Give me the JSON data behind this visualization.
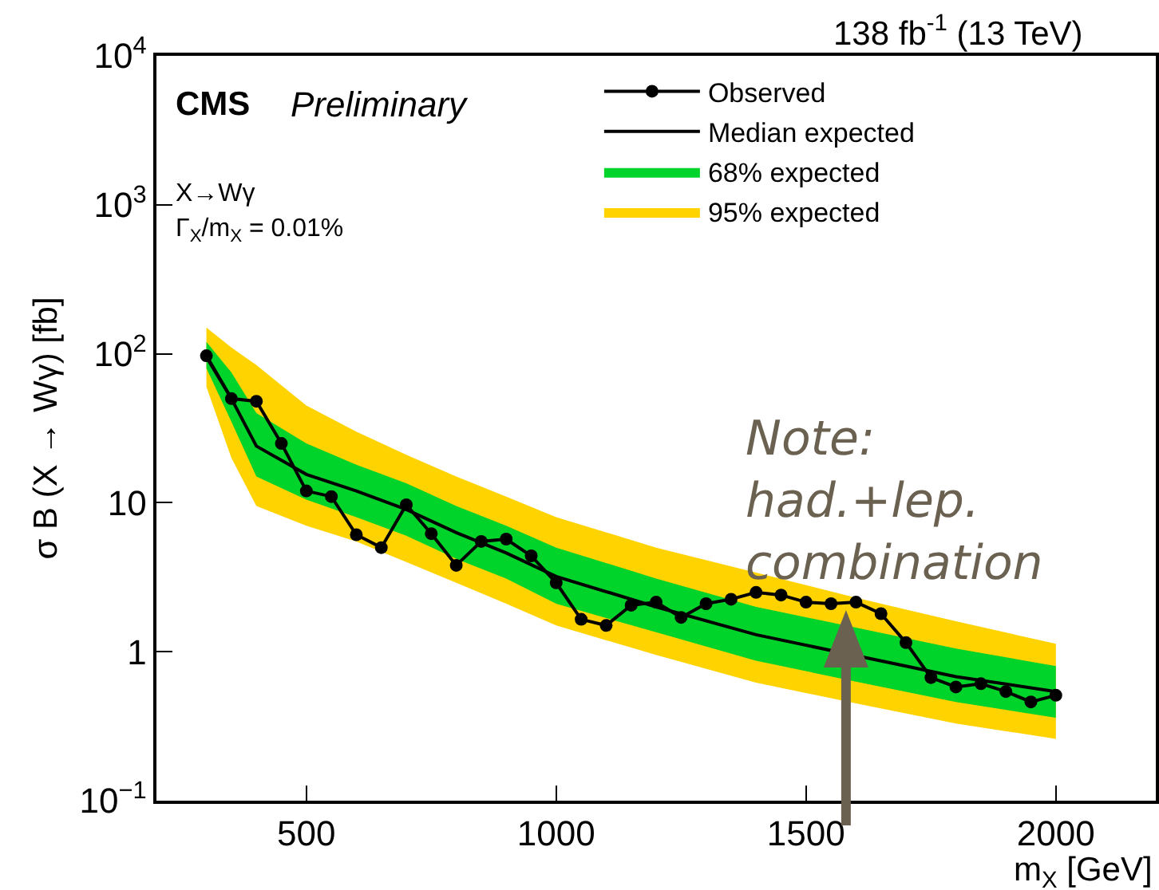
{
  "chart_data": {
    "type": "line",
    "xlabel": "m$_{X}$ [GeV]",
    "ylabel": "σ B (X → Wγ) [fb]",
    "log": "y",
    "xlim": [
      200,
      2200
    ],
    "xticks": [
      500,
      1000,
      1500,
      2000
    ],
    "ylim": [
      0.1,
      10000
    ],
    "yticks": [
      {
        "value": 0.1,
        "label": "10$^{−1}$"
      },
      1,
      10,
      {
        "value": 100,
        "label": "10$^{2}$"
      },
      {
        "value": 1000,
        "label": "10$^{3}$"
      },
      {
        "value": 10000,
        "label": "10$^{4}$"
      }
    ],
    "grid": false,
    "legend": "top right",
    "marker": "circle",
    "line_style": "solid",
    "series": [
      {
        "name": "95% expected",
        "type": "area",
        "marker": "none",
        "color": "#fed300",
        "x": [
          300,
          350,
          400,
          500,
          600,
          700,
          800,
          900,
          1000,
          1200,
          1400,
          1600,
          1800,
          2000
        ],
        "values": [
          null,
          null,
          null,
          null,
          null,
          null,
          null,
          null,
          null,
          null,
          null,
          null,
          null,
          null
        ],
        "lower": [
          60,
          20,
          9.5,
          7,
          5.5,
          4,
          2.9,
          2.1,
          1.5,
          0.95,
          0.62,
          0.45,
          0.33,
          0.26
        ],
        "upper": [
          150,
          110,
          84,
          45,
          30,
          21,
          15,
          11,
          8,
          5,
          3.4,
          2.3,
          1.6,
          1.13
        ]
      },
      {
        "name": "68% expected",
        "type": "area",
        "marker": "none",
        "color": "#00d32a",
        "x": [
          300,
          350,
          400,
          500,
          600,
          700,
          800,
          900,
          1000,
          1200,
          1400,
          1600,
          1800,
          2000
        ],
        "values": [
          null,
          null,
          null,
          null,
          null,
          null,
          null,
          null,
          null,
          null,
          null,
          null,
          null,
          null
        ],
        "lower": [
          80,
          35,
          15,
          10.5,
          8,
          6,
          4.2,
          3.1,
          2.1,
          1.35,
          0.87,
          0.63,
          0.46,
          0.36
        ],
        "upper": [
          120,
          75,
          40,
          25,
          18,
          13.5,
          9.5,
          7,
          5,
          3.1,
          2.0,
          1.45,
          1.05,
          0.8
        ]
      },
      {
        "name": "Median expected",
        "type": "line",
        "marker": "none",
        "color": "#000000",
        "x": [
          300,
          350,
          400,
          500,
          600,
          700,
          800,
          900,
          1000,
          1200,
          1400,
          1700,
          1800,
          2000
        ],
        "values": [
          95,
          50,
          24,
          15.5,
          12,
          9,
          6.3,
          4.6,
          3.2,
          2.0,
          1.3,
          0.8,
          0.68,
          0.54
        ]
      },
      {
        "name": "Observed",
        "color": "#000000",
        "x": [
          300,
          350,
          400,
          450,
          500,
          550,
          600,
          650,
          700,
          750,
          800,
          850,
          900,
          950,
          1000,
          1050,
          1100,
          1150,
          1200,
          1250,
          1300,
          1350,
          1400,
          1450,
          1500,
          1550,
          1600,
          1650,
          1700,
          1750,
          1800,
          1850,
          1900,
          1950,
          2000
        ],
        "values": [
          97,
          50,
          48,
          25,
          12,
          11,
          6.1,
          5.0,
          9.7,
          6.2,
          3.8,
          5.5,
          5.7,
          4.4,
          2.9,
          1.65,
          1.5,
          2.05,
          2.15,
          1.7,
          2.1,
          2.25,
          2.5,
          2.4,
          2.15,
          2.1,
          2.15,
          1.8,
          1.15,
          0.67,
          0.58,
          0.61,
          0.54,
          0.46,
          0.51
        ]
      }
    ],
    "annotations": [
      "138 fb$^{-1}$ (13 TeV)",
      "CMS",
      "Preliminary",
      "X→Wγ",
      "Γ$_{X}$/m$_{X}$ = 0.01%",
      {
        "text": "Note:\nhad.+lep.\ncombination",
        "x": 1580,
        "y": 1.9
      }
    ]
  }
}
